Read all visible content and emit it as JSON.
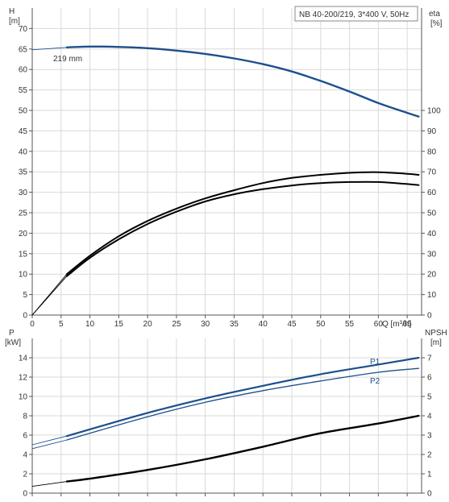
{
  "chart_data": [
    {
      "type": "line",
      "title": "NB 40-200/219, 3*400 V, 50Hz",
      "xlabel": "Q [m³/h]",
      "xticks": [
        "0",
        "5",
        "10",
        "15",
        "20",
        "25",
        "30",
        "35",
        "40",
        "45",
        "50",
        "55",
        "60",
        "65"
      ],
      "xlim": [
        0,
        67.5
      ],
      "left_axis": {
        "label": "H",
        "unit": "[m]",
        "range": [
          0,
          75
        ],
        "ticks": [
          "0",
          "5",
          "10",
          "15",
          "20",
          "25",
          "30",
          "35",
          "40",
          "45",
          "50",
          "55",
          "60",
          "65",
          "70"
        ]
      },
      "right_axis": {
        "label": "eta",
        "unit": "[%]",
        "range": [
          0,
          150
        ],
        "ticks": [
          "0",
          "10",
          "20",
          "30",
          "40",
          "50",
          "60",
          "70",
          "80",
          "90",
          "100"
        ]
      },
      "annotation": "219 mm",
      "grid": true,
      "colors": {
        "head": "#1c4f8c",
        "efficiency": "#000000"
      },
      "series": [
        {
          "axis": "left",
          "role": "head",
          "x": [
            0,
            6,
            10,
            15,
            20,
            25,
            30,
            35,
            40,
            45,
            50,
            55,
            60,
            65,
            67
          ],
          "values": [
            64.8,
            65.4,
            65.6,
            65.5,
            65.2,
            64.6,
            63.8,
            62.7,
            61.3,
            59.5,
            57.2,
            54.6,
            51.8,
            49.4,
            48.5
          ],
          "dashed_until_x": 6
        },
        {
          "axis": "right",
          "role": "efficiency_upper",
          "x": [
            0,
            6,
            10,
            15,
            20,
            25,
            30,
            35,
            40,
            45,
            50,
            55,
            60,
            65,
            67
          ],
          "values": [
            0,
            20,
            29,
            38.5,
            46,
            52,
            57,
            61,
            64.5,
            67,
            68.5,
            69.5,
            69.8,
            69,
            68.5
          ],
          "dashed_until_x": 6
        },
        {
          "axis": "right",
          "role": "efficiency_lower",
          "x": [
            0,
            6,
            10,
            15,
            20,
            25,
            30,
            35,
            40,
            45,
            50,
            55,
            60,
            65,
            67
          ],
          "values": [
            0,
            19,
            28,
            37,
            44.5,
            50.5,
            55.5,
            59,
            61.5,
            63.3,
            64.5,
            65,
            65,
            64,
            63.5
          ],
          "dashed_until_x": 6
        }
      ]
    },
    {
      "type": "line",
      "left_axis": {
        "label": "P",
        "unit": "[kW]",
        "range": [
          0,
          16
        ],
        "ticks": [
          "0",
          "2",
          "4",
          "6",
          "8",
          "10",
          "12",
          "14"
        ]
      },
      "right_axis": {
        "label": "NPSH",
        "unit": "[m]",
        "range": [
          0,
          8
        ],
        "ticks": [
          "0",
          "1",
          "2",
          "3",
          "4",
          "5",
          "6",
          "7"
        ]
      },
      "xlim": [
        0,
        67.5
      ],
      "grid": true,
      "colors": {
        "power": "#1c4f8c",
        "npsh": "#000000"
      },
      "series": [
        {
          "name": "P1",
          "axis": "left",
          "role": "power",
          "x": [
            0,
            6,
            10,
            20,
            30,
            40,
            50,
            60,
            67
          ],
          "values": [
            5,
            5.9,
            6.6,
            8.3,
            9.8,
            11.1,
            12.3,
            13.3,
            14.0
          ],
          "dashed_until_x": 6,
          "width": 2.2
        },
        {
          "name": "P2",
          "axis": "left",
          "role": "power",
          "x": [
            0,
            6,
            10,
            20,
            30,
            40,
            50,
            60,
            67
          ],
          "values": [
            4.6,
            5.5,
            6.2,
            7.9,
            9.4,
            10.6,
            11.6,
            12.5,
            12.9
          ],
          "dashed_until_x": 6,
          "width": 1.3
        },
        {
          "axis": "right",
          "role": "npsh",
          "x": [
            0,
            6,
            10,
            20,
            30,
            40,
            50,
            60,
            67
          ],
          "values": [
            0.35,
            0.6,
            0.75,
            1.2,
            1.75,
            2.4,
            3.1,
            3.6,
            4.0
          ],
          "dashed_until_x": 6,
          "width": 2.4
        }
      ]
    }
  ]
}
